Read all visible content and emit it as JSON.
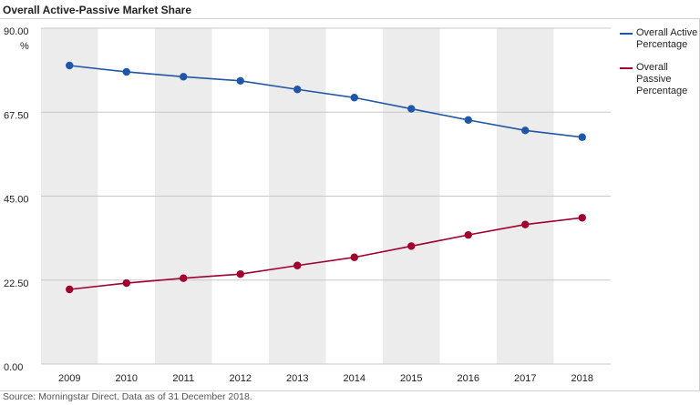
{
  "title": "Overall Active-Passive Market Share",
  "source": "Source: Morningstar Direct. Data as of 31 December 2018.",
  "chart_data": {
    "type": "line",
    "title": "Overall Active-Passive Market Share",
    "x": [
      "2009",
      "2010",
      "2011",
      "2012",
      "2013",
      "2014",
      "2015",
      "2016",
      "2017",
      "2018"
    ],
    "ylim": [
      0,
      90
    ],
    "yticks": [
      "90.00",
      "67.50",
      "45.00",
      "22.50",
      "0.00"
    ],
    "yunit": "%",
    "grid": true,
    "legend_position": "right",
    "series": [
      {
        "name": "Overall Active Percentage",
        "color": "#1f56a8",
        "values": [
          80.0,
          78.3,
          77.0,
          75.9,
          73.6,
          71.4,
          68.4,
          65.4,
          62.6,
          60.8
        ]
      },
      {
        "name": "Overall Passive Percentage",
        "color": "#a0002e",
        "values": [
          20.0,
          21.7,
          23.0,
          24.1,
          26.4,
          28.6,
          31.6,
          34.6,
          37.4,
          39.2
        ]
      }
    ]
  }
}
